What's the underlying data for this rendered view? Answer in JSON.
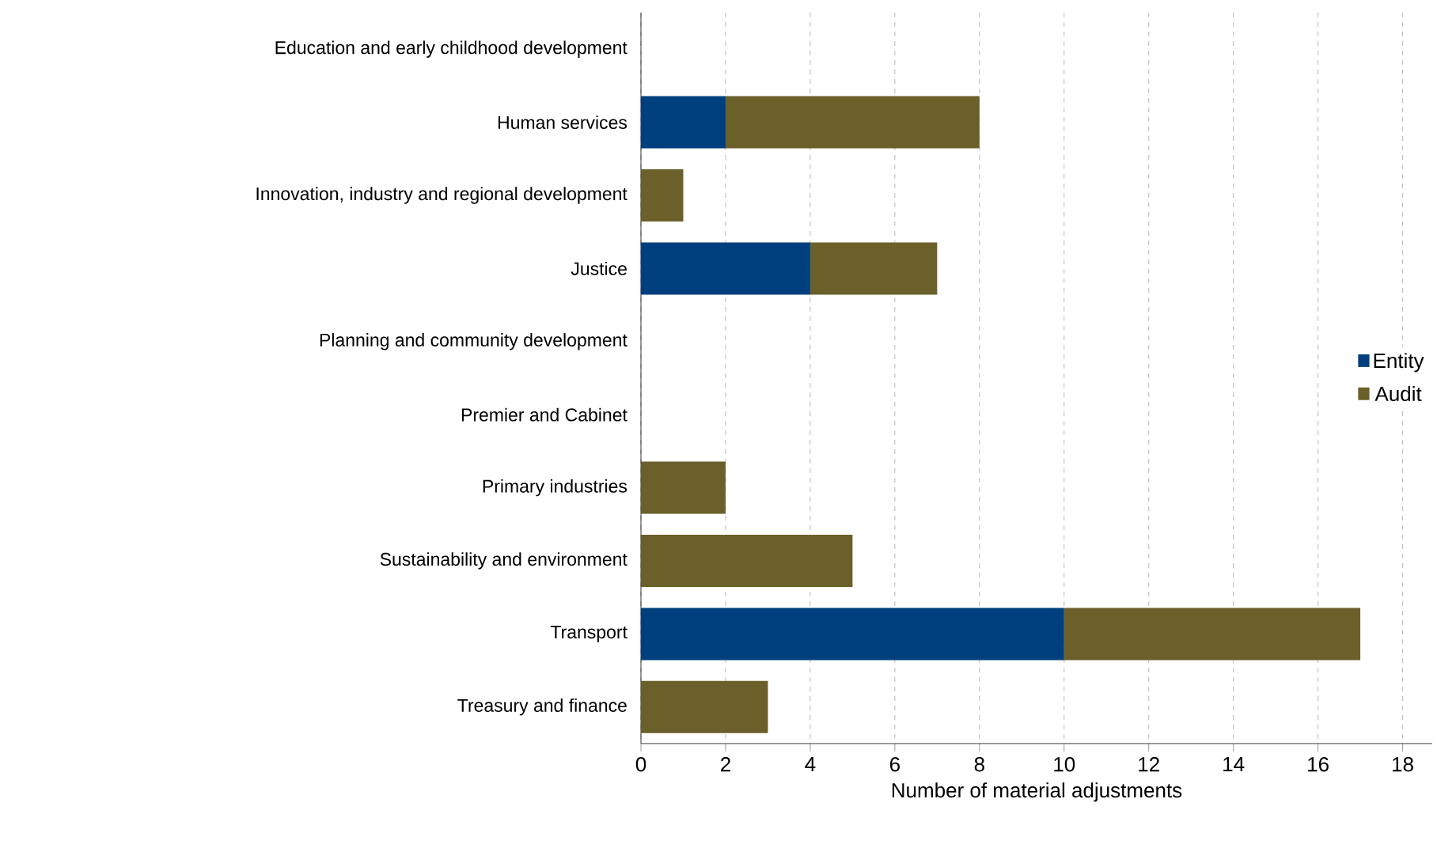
{
  "chart_data": {
    "type": "bar",
    "orientation": "horizontal",
    "stacked": true,
    "xlabel": "Number of material adjustments",
    "categories": [
      "Education and early childhood development",
      "Human services",
      "Innovation, industry and regional development",
      "Justice",
      "Planning and community development",
      "Premier and Cabinet",
      "Primary industries",
      "Sustainability and environment",
      "Transport",
      "Treasury and finance"
    ],
    "series": [
      {
        "name": "Entity",
        "color": "#003f7d",
        "values": [
          0,
          2,
          0,
          4,
          0,
          0,
          0,
          0,
          10,
          0
        ]
      },
      {
        "name": "Audit",
        "color": "#6b5f2a",
        "values": [
          0,
          6,
          1,
          3,
          0,
          0,
          2,
          5,
          7,
          3
        ]
      }
    ],
    "xlim": [
      0,
      18.7
    ],
    "xticks": [
      0,
      2,
      4,
      6,
      8,
      10,
      12,
      14,
      16,
      18
    ],
    "grid": "x",
    "legend": "right"
  }
}
